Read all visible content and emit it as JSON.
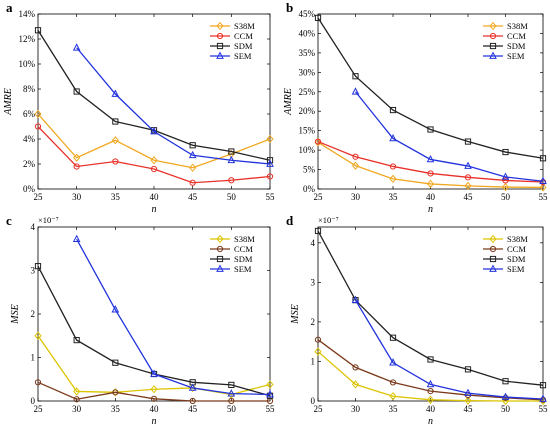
{
  "chart_data": [
    {
      "panel_label": "a",
      "type": "line",
      "x": [
        25,
        30,
        35,
        40,
        45,
        50,
        55
      ],
      "xlabel": "n",
      "ylabel": "AMRE",
      "xlim": [
        25,
        55
      ],
      "ylim": [
        0,
        14
      ],
      "x_ticks": [
        "25",
        "30",
        "35",
        "40",
        "45",
        "50",
        "55"
      ],
      "y_ticks": [
        "0%",
        "2%",
        "4%",
        "6%",
        "8%",
        "10%",
        "12%",
        "14%"
      ],
      "y_tick_values": [
        0,
        2,
        4,
        6,
        8,
        10,
        12,
        14
      ],
      "multiplier": "",
      "grid": false,
      "legend_position": "top-right",
      "series": [
        {
          "name": "S38M",
          "color": "#f0a820",
          "marker": "diamond",
          "values": [
            6.0,
            2.5,
            3.9,
            2.3,
            1.7,
            2.8,
            4.0
          ]
        },
        {
          "name": "CCM",
          "color": "#e8312a",
          "marker": "circle",
          "values": [
            5.0,
            1.8,
            2.2,
            1.6,
            0.5,
            0.7,
            1.0
          ]
        },
        {
          "name": "SDM",
          "color": "#222222",
          "marker": "square",
          "values": [
            12.7,
            7.8,
            5.4,
            4.7,
            3.5,
            3.0,
            2.3
          ]
        },
        {
          "name": "SEM",
          "color": "#2233dd",
          "marker": "triangle",
          "values": [
            null,
            11.3,
            7.6,
            4.6,
            2.7,
            2.3,
            2.0
          ]
        }
      ]
    },
    {
      "panel_label": "b",
      "type": "line",
      "x": [
        25,
        30,
        35,
        40,
        45,
        50,
        55
      ],
      "xlabel": "n",
      "ylabel": "AMRE",
      "xlim": [
        25,
        55
      ],
      "ylim": [
        0,
        45
      ],
      "x_ticks": [
        "25",
        "30",
        "35",
        "40",
        "45",
        "50",
        "55"
      ],
      "y_ticks": [
        "0%",
        "5%",
        "10%",
        "15%",
        "20%",
        "25%",
        "30%",
        "35%",
        "40%",
        "45%"
      ],
      "y_tick_values": [
        0,
        5,
        10,
        15,
        20,
        25,
        30,
        35,
        40,
        45
      ],
      "multiplier": "",
      "grid": false,
      "legend_position": "top-right",
      "series": [
        {
          "name": "S38M",
          "color": "#f0a820",
          "marker": "diamond",
          "values": [
            12.0,
            6.0,
            2.6,
            1.3,
            0.8,
            0.5,
            0.4
          ]
        },
        {
          "name": "CCM",
          "color": "#e8312a",
          "marker": "circle",
          "values": [
            12.2,
            8.3,
            5.8,
            4.0,
            3.0,
            2.2,
            1.8
          ]
        },
        {
          "name": "SDM",
          "color": "#222222",
          "marker": "square",
          "values": [
            44.0,
            29.0,
            20.3,
            15.3,
            12.2,
            9.5,
            7.9
          ]
        },
        {
          "name": "SEM",
          "color": "#2233dd",
          "marker": "triangle",
          "values": [
            null,
            25.0,
            13.0,
            7.6,
            5.9,
            3.1,
            2.0
          ]
        }
      ]
    },
    {
      "panel_label": "c",
      "type": "line",
      "x": [
        25,
        30,
        35,
        40,
        45,
        50,
        55
      ],
      "xlabel": "n",
      "ylabel": "MSE",
      "xlim": [
        25,
        55
      ],
      "ylim": [
        0,
        4
      ],
      "x_ticks": [
        "25",
        "30",
        "35",
        "40",
        "45",
        "50",
        "55"
      ],
      "y_ticks": [
        "0",
        "1",
        "2",
        "3",
        "4"
      ],
      "y_tick_values": [
        0,
        1,
        2,
        3,
        4
      ],
      "multiplier": "×10⁻⁷",
      "grid": false,
      "legend_position": "top-right",
      "series": [
        {
          "name": "S38M",
          "color": "#dcc400",
          "marker": "diamond",
          "values": [
            1.5,
            0.22,
            0.2,
            0.27,
            0.3,
            0.15,
            0.38
          ]
        },
        {
          "name": "CCM",
          "color": "#7a3a1a",
          "marker": "circle",
          "values": [
            0.43,
            0.04,
            0.2,
            0.05,
            0.0,
            0.0,
            0.0
          ]
        },
        {
          "name": "SDM",
          "color": "#222222",
          "marker": "square",
          "values": [
            3.1,
            1.4,
            0.88,
            0.62,
            0.43,
            0.37,
            0.12
          ]
        },
        {
          "name": "SEM",
          "color": "#2233dd",
          "marker": "triangle",
          "values": [
            null,
            3.72,
            2.1,
            0.62,
            0.3,
            0.17,
            0.15
          ]
        }
      ]
    },
    {
      "panel_label": "d",
      "type": "line",
      "x": [
        25,
        30,
        35,
        40,
        45,
        50,
        55
      ],
      "xlabel": "n",
      "ylabel": "MSE",
      "xlim": [
        25,
        55
      ],
      "ylim": [
        0,
        4.4
      ],
      "x_ticks": [
        "25",
        "30",
        "35",
        "40",
        "45",
        "50",
        "55"
      ],
      "y_ticks": [
        "0",
        "1",
        "2",
        "3",
        "4"
      ],
      "y_tick_values": [
        0,
        1,
        2,
        3,
        4
      ],
      "multiplier": "×10⁻⁷",
      "grid": false,
      "legend_position": "top-right",
      "series": [
        {
          "name": "S38M",
          "color": "#dcc400",
          "marker": "diamond",
          "values": [
            1.25,
            0.42,
            0.12,
            0.03,
            0.01,
            0.0,
            0.0
          ]
        },
        {
          "name": "CCM",
          "color": "#7a3a1a",
          "marker": "circle",
          "values": [
            1.55,
            0.85,
            0.47,
            0.25,
            0.15,
            0.08,
            0.03
          ]
        },
        {
          "name": "SDM",
          "color": "#222222",
          "marker": "square",
          "values": [
            4.3,
            2.55,
            1.6,
            1.05,
            0.8,
            0.5,
            0.4
          ]
        },
        {
          "name": "SEM",
          "color": "#2233dd",
          "marker": "triangle",
          "values": [
            null,
            2.55,
            0.97,
            0.42,
            0.2,
            0.1,
            0.05
          ]
        }
      ]
    }
  ]
}
